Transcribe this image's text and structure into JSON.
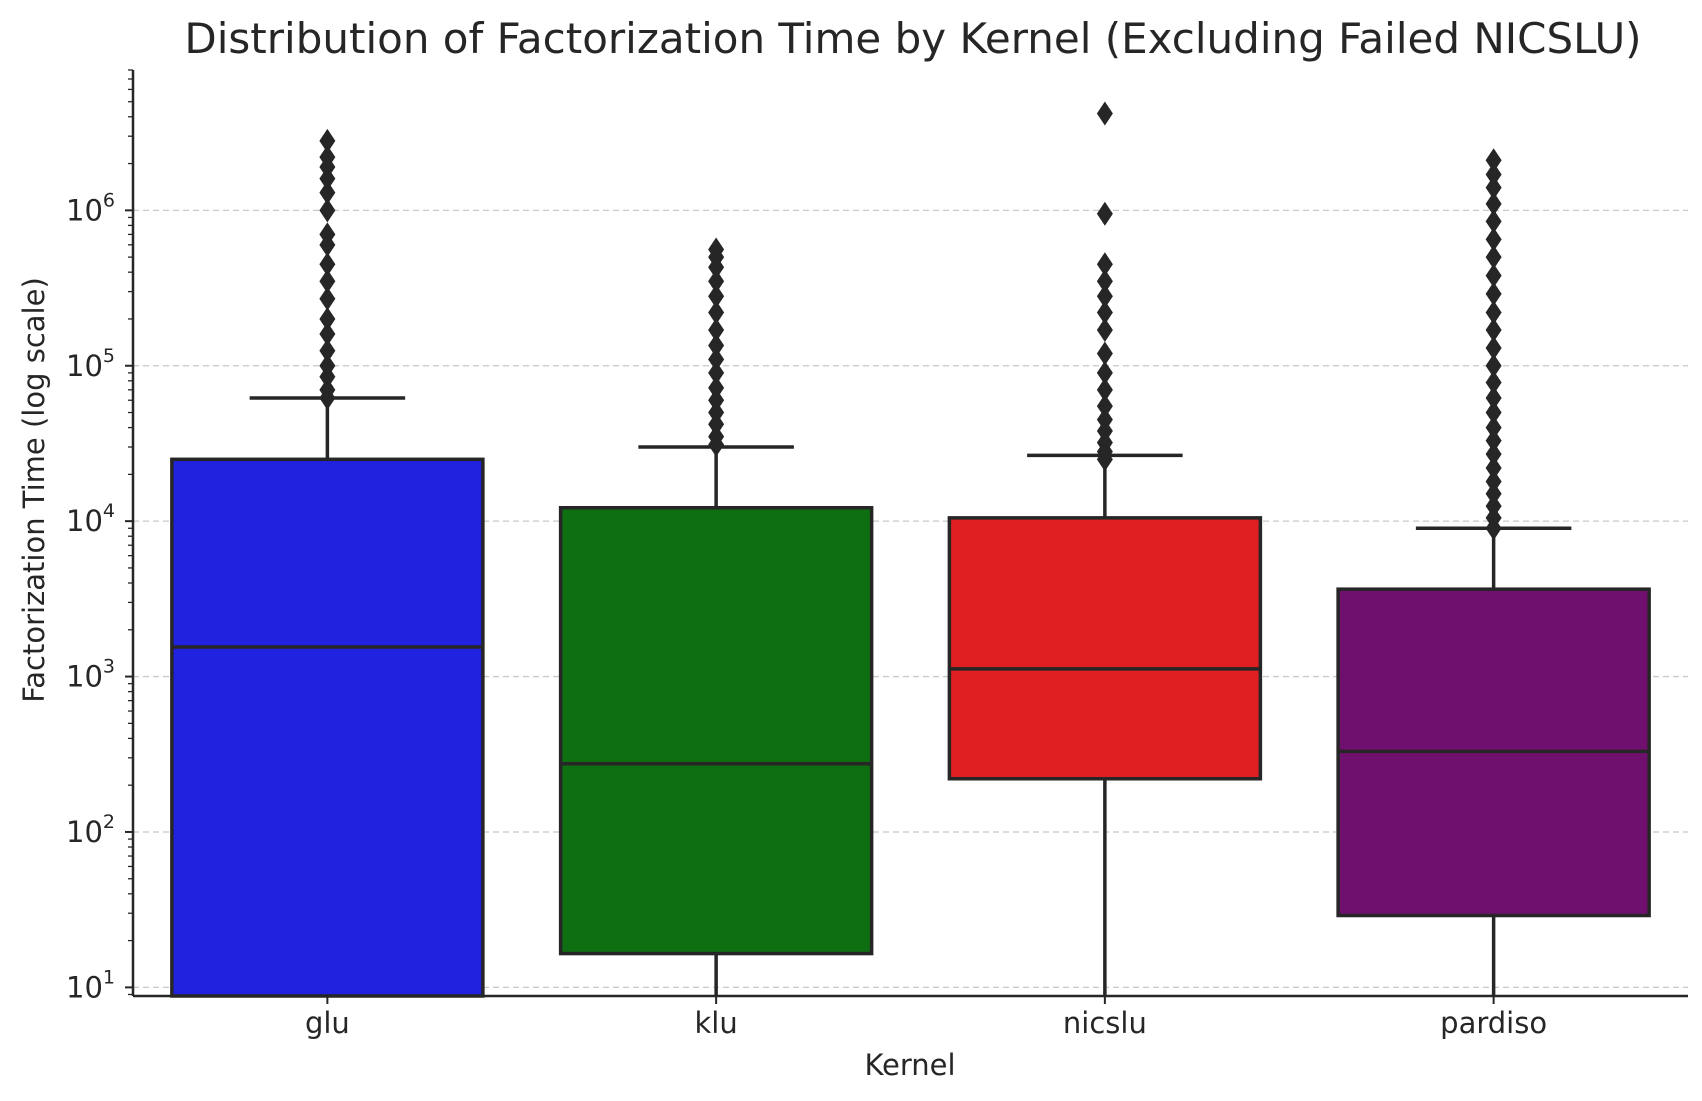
{
  "chart_data": {
    "type": "box",
    "title": "Distribution of Factorization Time by Kernel (Excluding Failed NICSLU)",
    "xlabel": "Kernel",
    "ylabel": "Factorization Time (log scale)",
    "yscale": "log",
    "ylim": [
      8.8,
      8000000
    ],
    "y_ticks": [
      {
        "value": 10,
        "base": "10",
        "exp": "1"
      },
      {
        "value": 100,
        "base": "10",
        "exp": "2"
      },
      {
        "value": 1000,
        "base": "10",
        "exp": "3"
      },
      {
        "value": 10000,
        "base": "10",
        "exp": "4"
      },
      {
        "value": 100000,
        "base": "10",
        "exp": "5"
      },
      {
        "value": 1000000,
        "base": "10",
        "exp": "6"
      }
    ],
    "grid": "horizontal dashed",
    "categories": [
      "glu",
      "klu",
      "nicslu",
      "pardiso"
    ],
    "boxes": [
      {
        "category": "glu",
        "color": "#2121e0",
        "whisker_low": 8.8,
        "q1": 8.8,
        "median": 1550,
        "q3": 25000,
        "whisker_high": 62000,
        "outliers": [
          62000,
          70000,
          85000,
          100000,
          125000,
          160000,
          200000,
          270000,
          350000,
          450000,
          600000,
          700000,
          1000000,
          1300000,
          1600000,
          1900000,
          2200000,
          2800000
        ]
      },
      {
        "category": "klu",
        "color": "#0e6e12",
        "whisker_low": 8.8,
        "q1": 16.5,
        "median": 275,
        "q3": 12200,
        "whisker_high": 30000,
        "outliers": [
          31000,
          35000,
          42000,
          50000,
          60000,
          72000,
          90000,
          110000,
          135000,
          170000,
          220000,
          280000,
          350000,
          430000,
          500000,
          560000
        ]
      },
      {
        "category": "nicslu",
        "color": "#e01f22",
        "whisker_low": 8.8,
        "q1": 220,
        "median": 1120,
        "q3": 10500,
        "whisker_high": 26500,
        "outliers": [
          25000,
          28000,
          32000,
          38000,
          45000,
          55000,
          70000,
          90000,
          120000,
          170000,
          220000,
          280000,
          350000,
          450000,
          950000,
          4200000
        ]
      },
      {
        "category": "pardiso",
        "color": "#6f106f",
        "whisker_low": 8.8,
        "q1": 29,
        "median": 330,
        "q3": 3650,
        "whisker_high": 9000,
        "outliers": [
          9000,
          10500,
          12500,
          15000,
          18000,
          22000,
          27000,
          33000,
          40000,
          50000,
          62000,
          78000,
          100000,
          130000,
          170000,
          220000,
          290000,
          380000,
          500000,
          650000,
          850000,
          1100000,
          1400000,
          1700000,
          2100000
        ]
      }
    ]
  }
}
